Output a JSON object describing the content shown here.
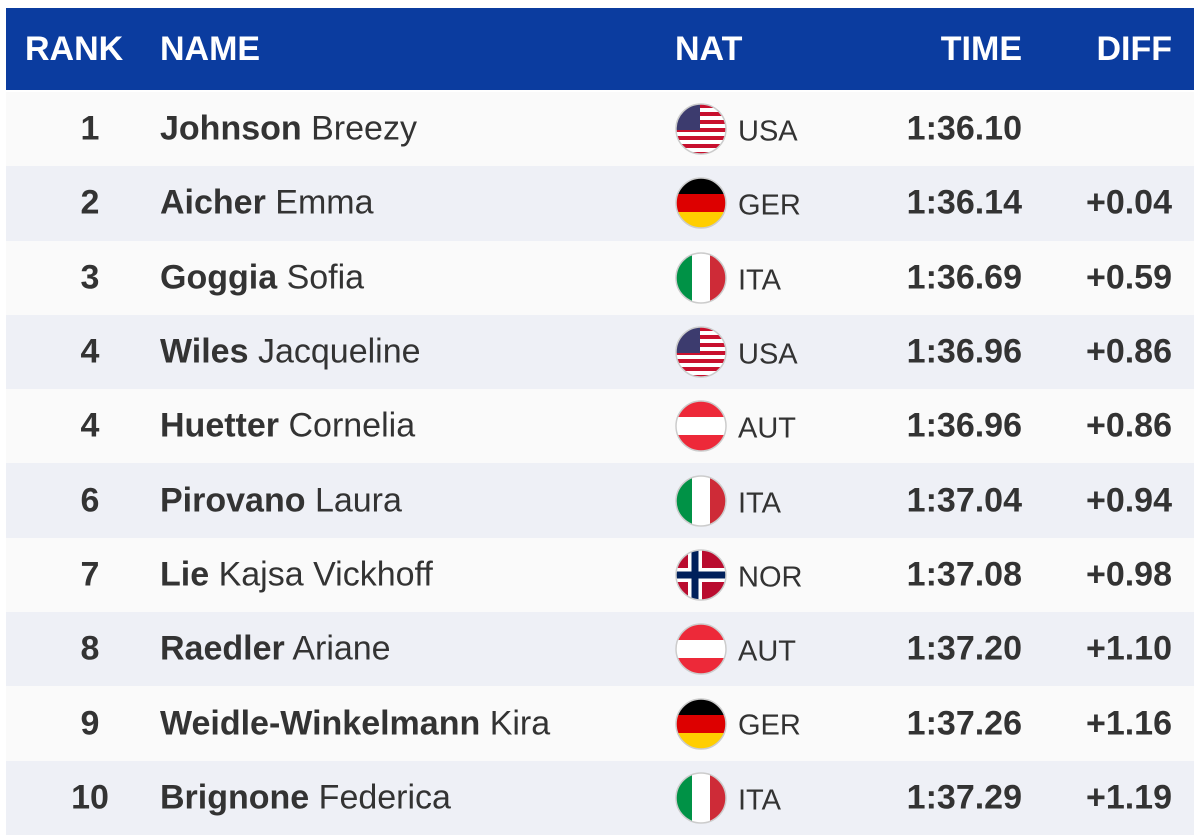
{
  "header": {
    "rank": "RANK",
    "name": "NAME",
    "nat": "NAT",
    "time": "TIME",
    "diff": "DIFF"
  },
  "rows": [
    {
      "rank": 1,
      "surname": "Johnson",
      "given_name": "Breezy",
      "nat": "USA",
      "time": "1:36.10"
    },
    {
      "rank": 2,
      "surname": "Aicher",
      "given_name": "Emma",
      "nat": "GER",
      "time": "1:36.14",
      "diff": "+0.04"
    },
    {
      "rank": 3,
      "surname": "Goggia",
      "given_name": "Sofia",
      "nat": "ITA",
      "time": "1:36.69",
      "diff": "+0.59"
    },
    {
      "rank": 4,
      "surname": "Wiles",
      "given_name": "Jacqueline",
      "nat": "USA",
      "time": "1:36.96",
      "diff": "+0.86"
    },
    {
      "rank": 4,
      "surname": "Huetter",
      "given_name": "Cornelia",
      "nat": "AUT",
      "time": "1:36.96",
      "diff": "+0.86"
    },
    {
      "rank": 6,
      "surname": "Pirovano",
      "given_name": "Laura",
      "nat": "ITA",
      "time": "1:37.04",
      "diff": "+0.94"
    },
    {
      "rank": 7,
      "surname": "Lie",
      "given_name": "Kajsa Vickhoff",
      "nat": "NOR",
      "time": "1:37.08",
      "diff": "+0.98"
    },
    {
      "rank": 8,
      "surname": "Raedler",
      "given_name": "Ariane",
      "nat": "AUT",
      "time": "1:37.20",
      "diff": "+1.10"
    },
    {
      "rank": 9,
      "surname": "Weidle-Winkelmann",
      "given_name": "Kira",
      "nat": "GER",
      "time": "1:37.26",
      "diff": "+1.16"
    },
    {
      "rank": 10,
      "surname": "Brignone",
      "given_name": "Federica",
      "nat": "ITA",
      "time": "1:37.29",
      "diff": "+1.19"
    }
  ]
}
